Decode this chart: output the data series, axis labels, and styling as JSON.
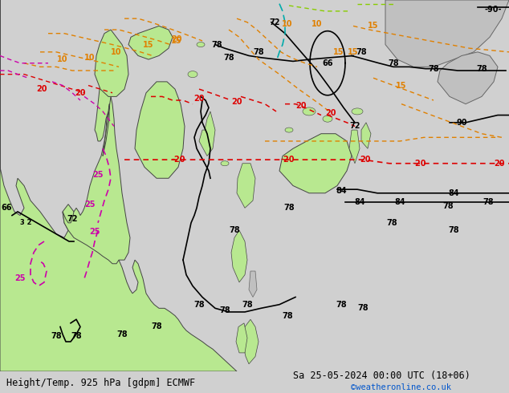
{
  "title_left": "Height/Temp. 925 hPa [gdpm] ECMWF",
  "title_right": "Sa 25-05-2024 00:00 UTC (18+06)",
  "credit": "©weatheronline.co.uk",
  "bg_color": "#d0d0d0",
  "ocean_color": "#d8d8d8",
  "land_green": "#b8e890",
  "land_gray": "#c0c0c0",
  "figure_width": 6.34,
  "figure_height": 4.9,
  "dpi": 100,
  "title_fontsize": 8.5,
  "credit_fontsize": 7.5,
  "credit_color": "#0055cc"
}
